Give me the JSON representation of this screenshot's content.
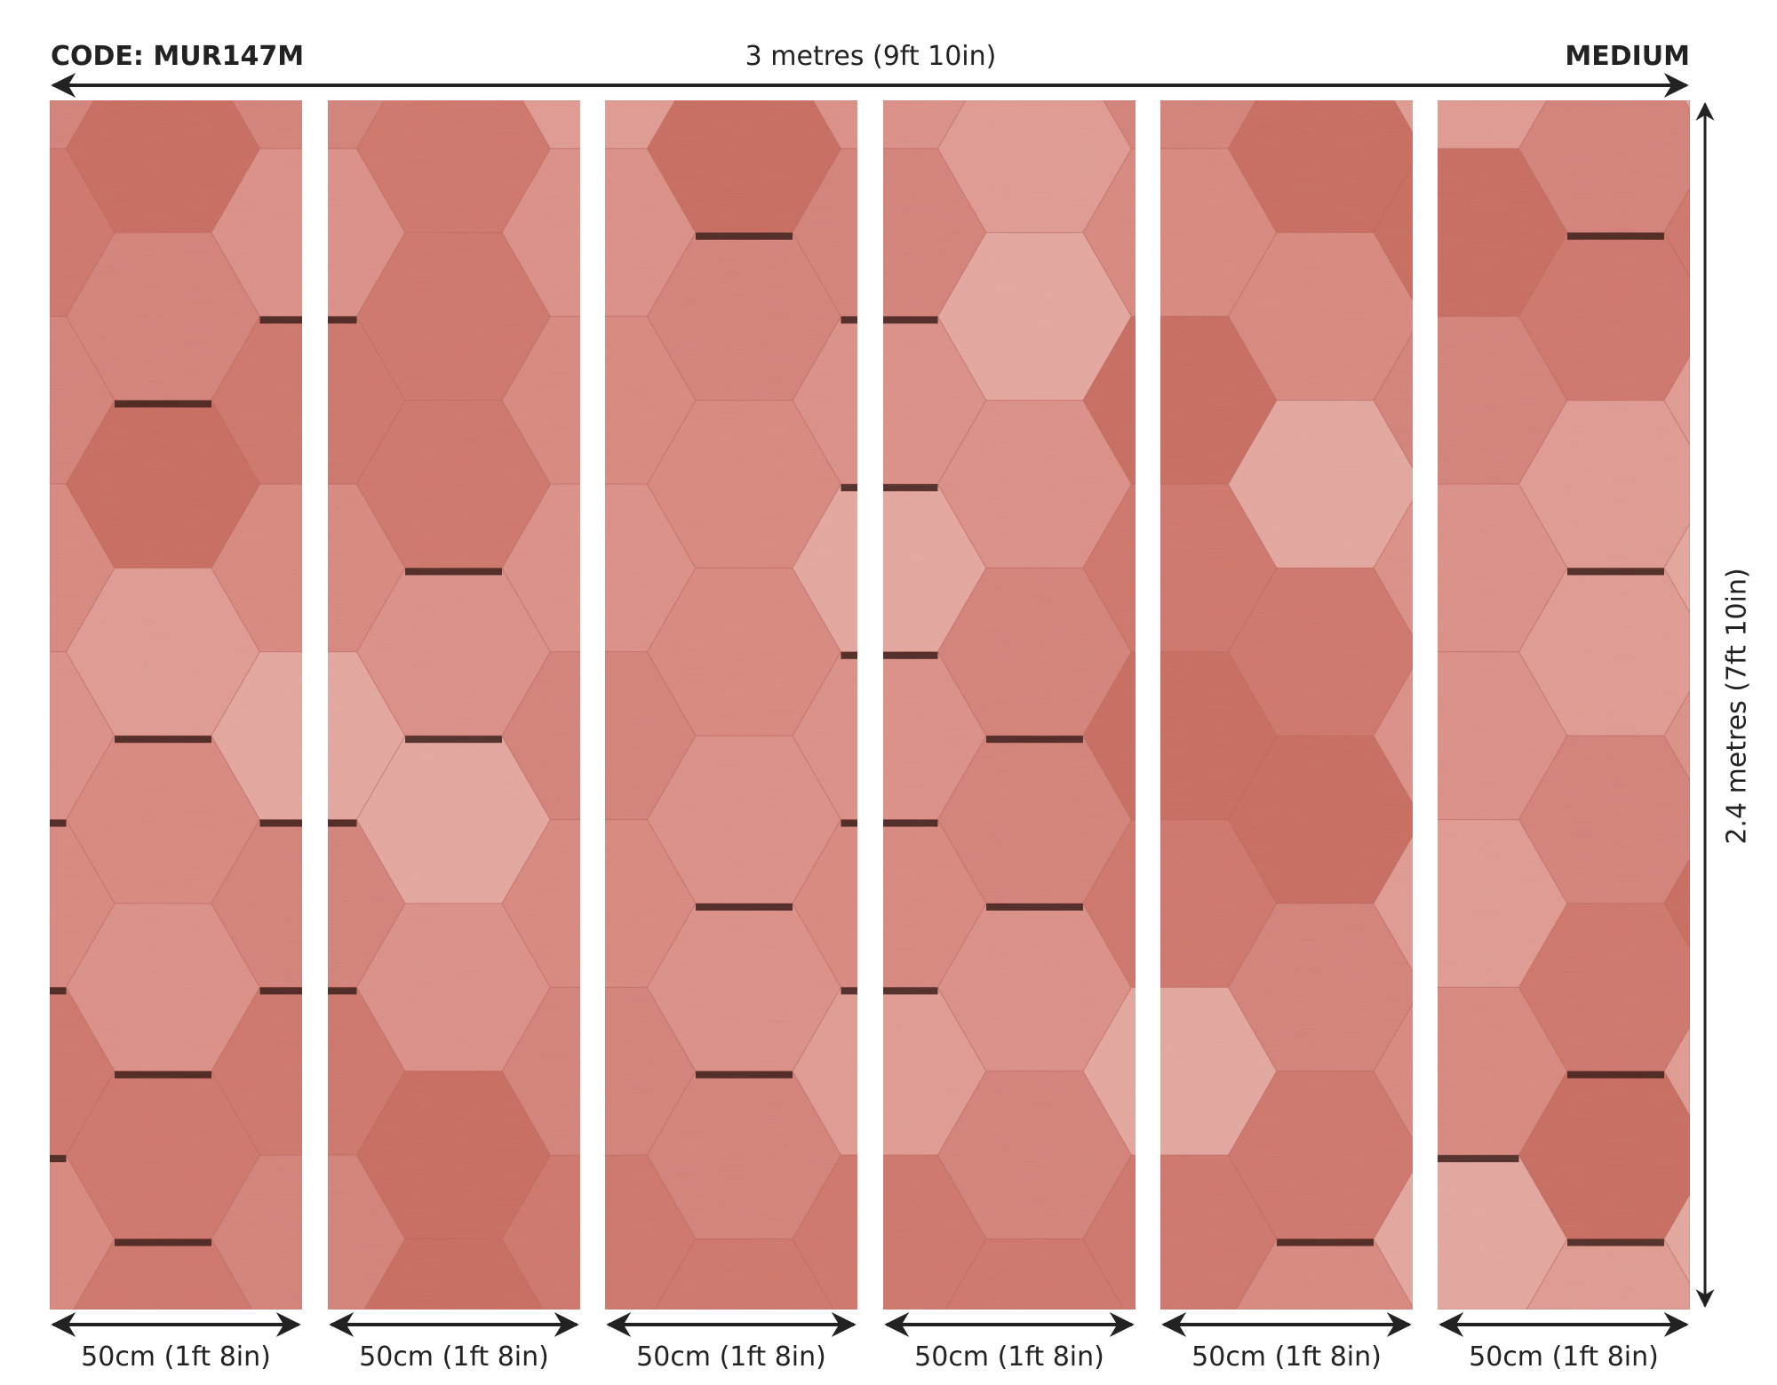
{
  "header": {
    "code": "CODE: MUR147M",
    "width_label": "3 metres (9ft 10in)",
    "size": "MEDIUM"
  },
  "height_label": "2.4 metres (7ft 10in)",
  "panels": [
    {
      "label": "50cm (1ft 8in)"
    },
    {
      "label": "50cm (1ft 8in)"
    },
    {
      "label": "50cm (1ft 8in)"
    },
    {
      "label": "50cm (1ft 8in)"
    },
    {
      "label": "50cm (1ft 8in)"
    },
    {
      "label": "50cm (1ft 8in)"
    }
  ],
  "colors": {
    "base": "#d98a80",
    "light": "#e3a097",
    "dark": "#c8685c",
    "arrow": "#222222"
  },
  "pattern": "brushed-metal-3d-hexagons"
}
